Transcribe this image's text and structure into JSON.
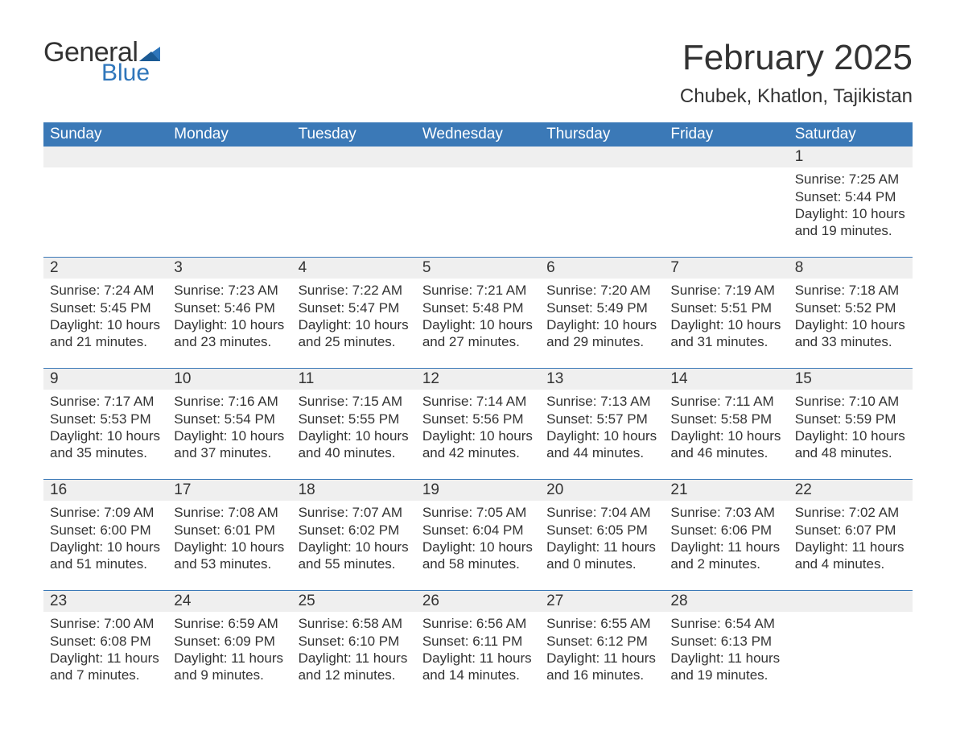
{
  "logo": {
    "text_general": "General",
    "text_blue": "Blue",
    "color_blue": "#2f76bb"
  },
  "title": "February 2025",
  "location": "Chubek, Khatlon, Tajikistan",
  "header_bg": "#3b79b7",
  "header_fg": "#ffffff",
  "daynum_bg": "#efefef",
  "border_color": "#3b79b7",
  "text_color": "#333333",
  "weekdays": [
    "Sunday",
    "Monday",
    "Tuesday",
    "Wednesday",
    "Thursday",
    "Friday",
    "Saturday"
  ],
  "weeks": [
    [
      null,
      null,
      null,
      null,
      null,
      null,
      {
        "day": "1",
        "sunrise": "Sunrise: 7:25 AM",
        "sunset": "Sunset: 5:44 PM",
        "daylight1": "Daylight: 10 hours",
        "daylight2": "and 19 minutes."
      }
    ],
    [
      {
        "day": "2",
        "sunrise": "Sunrise: 7:24 AM",
        "sunset": "Sunset: 5:45 PM",
        "daylight1": "Daylight: 10 hours",
        "daylight2": "and 21 minutes."
      },
      {
        "day": "3",
        "sunrise": "Sunrise: 7:23 AM",
        "sunset": "Sunset: 5:46 PM",
        "daylight1": "Daylight: 10 hours",
        "daylight2": "and 23 minutes."
      },
      {
        "day": "4",
        "sunrise": "Sunrise: 7:22 AM",
        "sunset": "Sunset: 5:47 PM",
        "daylight1": "Daylight: 10 hours",
        "daylight2": "and 25 minutes."
      },
      {
        "day": "5",
        "sunrise": "Sunrise: 7:21 AM",
        "sunset": "Sunset: 5:48 PM",
        "daylight1": "Daylight: 10 hours",
        "daylight2": "and 27 minutes."
      },
      {
        "day": "6",
        "sunrise": "Sunrise: 7:20 AM",
        "sunset": "Sunset: 5:49 PM",
        "daylight1": "Daylight: 10 hours",
        "daylight2": "and 29 minutes."
      },
      {
        "day": "7",
        "sunrise": "Sunrise: 7:19 AM",
        "sunset": "Sunset: 5:51 PM",
        "daylight1": "Daylight: 10 hours",
        "daylight2": "and 31 minutes."
      },
      {
        "day": "8",
        "sunrise": "Sunrise: 7:18 AM",
        "sunset": "Sunset: 5:52 PM",
        "daylight1": "Daylight: 10 hours",
        "daylight2": "and 33 minutes."
      }
    ],
    [
      {
        "day": "9",
        "sunrise": "Sunrise: 7:17 AM",
        "sunset": "Sunset: 5:53 PM",
        "daylight1": "Daylight: 10 hours",
        "daylight2": "and 35 minutes."
      },
      {
        "day": "10",
        "sunrise": "Sunrise: 7:16 AM",
        "sunset": "Sunset: 5:54 PM",
        "daylight1": "Daylight: 10 hours",
        "daylight2": "and 37 minutes."
      },
      {
        "day": "11",
        "sunrise": "Sunrise: 7:15 AM",
        "sunset": "Sunset: 5:55 PM",
        "daylight1": "Daylight: 10 hours",
        "daylight2": "and 40 minutes."
      },
      {
        "day": "12",
        "sunrise": "Sunrise: 7:14 AM",
        "sunset": "Sunset: 5:56 PM",
        "daylight1": "Daylight: 10 hours",
        "daylight2": "and 42 minutes."
      },
      {
        "day": "13",
        "sunrise": "Sunrise: 7:13 AM",
        "sunset": "Sunset: 5:57 PM",
        "daylight1": "Daylight: 10 hours",
        "daylight2": "and 44 minutes."
      },
      {
        "day": "14",
        "sunrise": "Sunrise: 7:11 AM",
        "sunset": "Sunset: 5:58 PM",
        "daylight1": "Daylight: 10 hours",
        "daylight2": "and 46 minutes."
      },
      {
        "day": "15",
        "sunrise": "Sunrise: 7:10 AM",
        "sunset": "Sunset: 5:59 PM",
        "daylight1": "Daylight: 10 hours",
        "daylight2": "and 48 minutes."
      }
    ],
    [
      {
        "day": "16",
        "sunrise": "Sunrise: 7:09 AM",
        "sunset": "Sunset: 6:00 PM",
        "daylight1": "Daylight: 10 hours",
        "daylight2": "and 51 minutes."
      },
      {
        "day": "17",
        "sunrise": "Sunrise: 7:08 AM",
        "sunset": "Sunset: 6:01 PM",
        "daylight1": "Daylight: 10 hours",
        "daylight2": "and 53 minutes."
      },
      {
        "day": "18",
        "sunrise": "Sunrise: 7:07 AM",
        "sunset": "Sunset: 6:02 PM",
        "daylight1": "Daylight: 10 hours",
        "daylight2": "and 55 minutes."
      },
      {
        "day": "19",
        "sunrise": "Sunrise: 7:05 AM",
        "sunset": "Sunset: 6:04 PM",
        "daylight1": "Daylight: 10 hours",
        "daylight2": "and 58 minutes."
      },
      {
        "day": "20",
        "sunrise": "Sunrise: 7:04 AM",
        "sunset": "Sunset: 6:05 PM",
        "daylight1": "Daylight: 11 hours",
        "daylight2": "and 0 minutes."
      },
      {
        "day": "21",
        "sunrise": "Sunrise: 7:03 AM",
        "sunset": "Sunset: 6:06 PM",
        "daylight1": "Daylight: 11 hours",
        "daylight2": "and 2 minutes."
      },
      {
        "day": "22",
        "sunrise": "Sunrise: 7:02 AM",
        "sunset": "Sunset: 6:07 PM",
        "daylight1": "Daylight: 11 hours",
        "daylight2": "and 4 minutes."
      }
    ],
    [
      {
        "day": "23",
        "sunrise": "Sunrise: 7:00 AM",
        "sunset": "Sunset: 6:08 PM",
        "daylight1": "Daylight: 11 hours",
        "daylight2": "and 7 minutes."
      },
      {
        "day": "24",
        "sunrise": "Sunrise: 6:59 AM",
        "sunset": "Sunset: 6:09 PM",
        "daylight1": "Daylight: 11 hours",
        "daylight2": "and 9 minutes."
      },
      {
        "day": "25",
        "sunrise": "Sunrise: 6:58 AM",
        "sunset": "Sunset: 6:10 PM",
        "daylight1": "Daylight: 11 hours",
        "daylight2": "and 12 minutes."
      },
      {
        "day": "26",
        "sunrise": "Sunrise: 6:56 AM",
        "sunset": "Sunset: 6:11 PM",
        "daylight1": "Daylight: 11 hours",
        "daylight2": "and 14 minutes."
      },
      {
        "day": "27",
        "sunrise": "Sunrise: 6:55 AM",
        "sunset": "Sunset: 6:12 PM",
        "daylight1": "Daylight: 11 hours",
        "daylight2": "and 16 minutes."
      },
      {
        "day": "28",
        "sunrise": "Sunrise: 6:54 AM",
        "sunset": "Sunset: 6:13 PM",
        "daylight1": "Daylight: 11 hours",
        "daylight2": "and 19 minutes."
      },
      null
    ]
  ]
}
